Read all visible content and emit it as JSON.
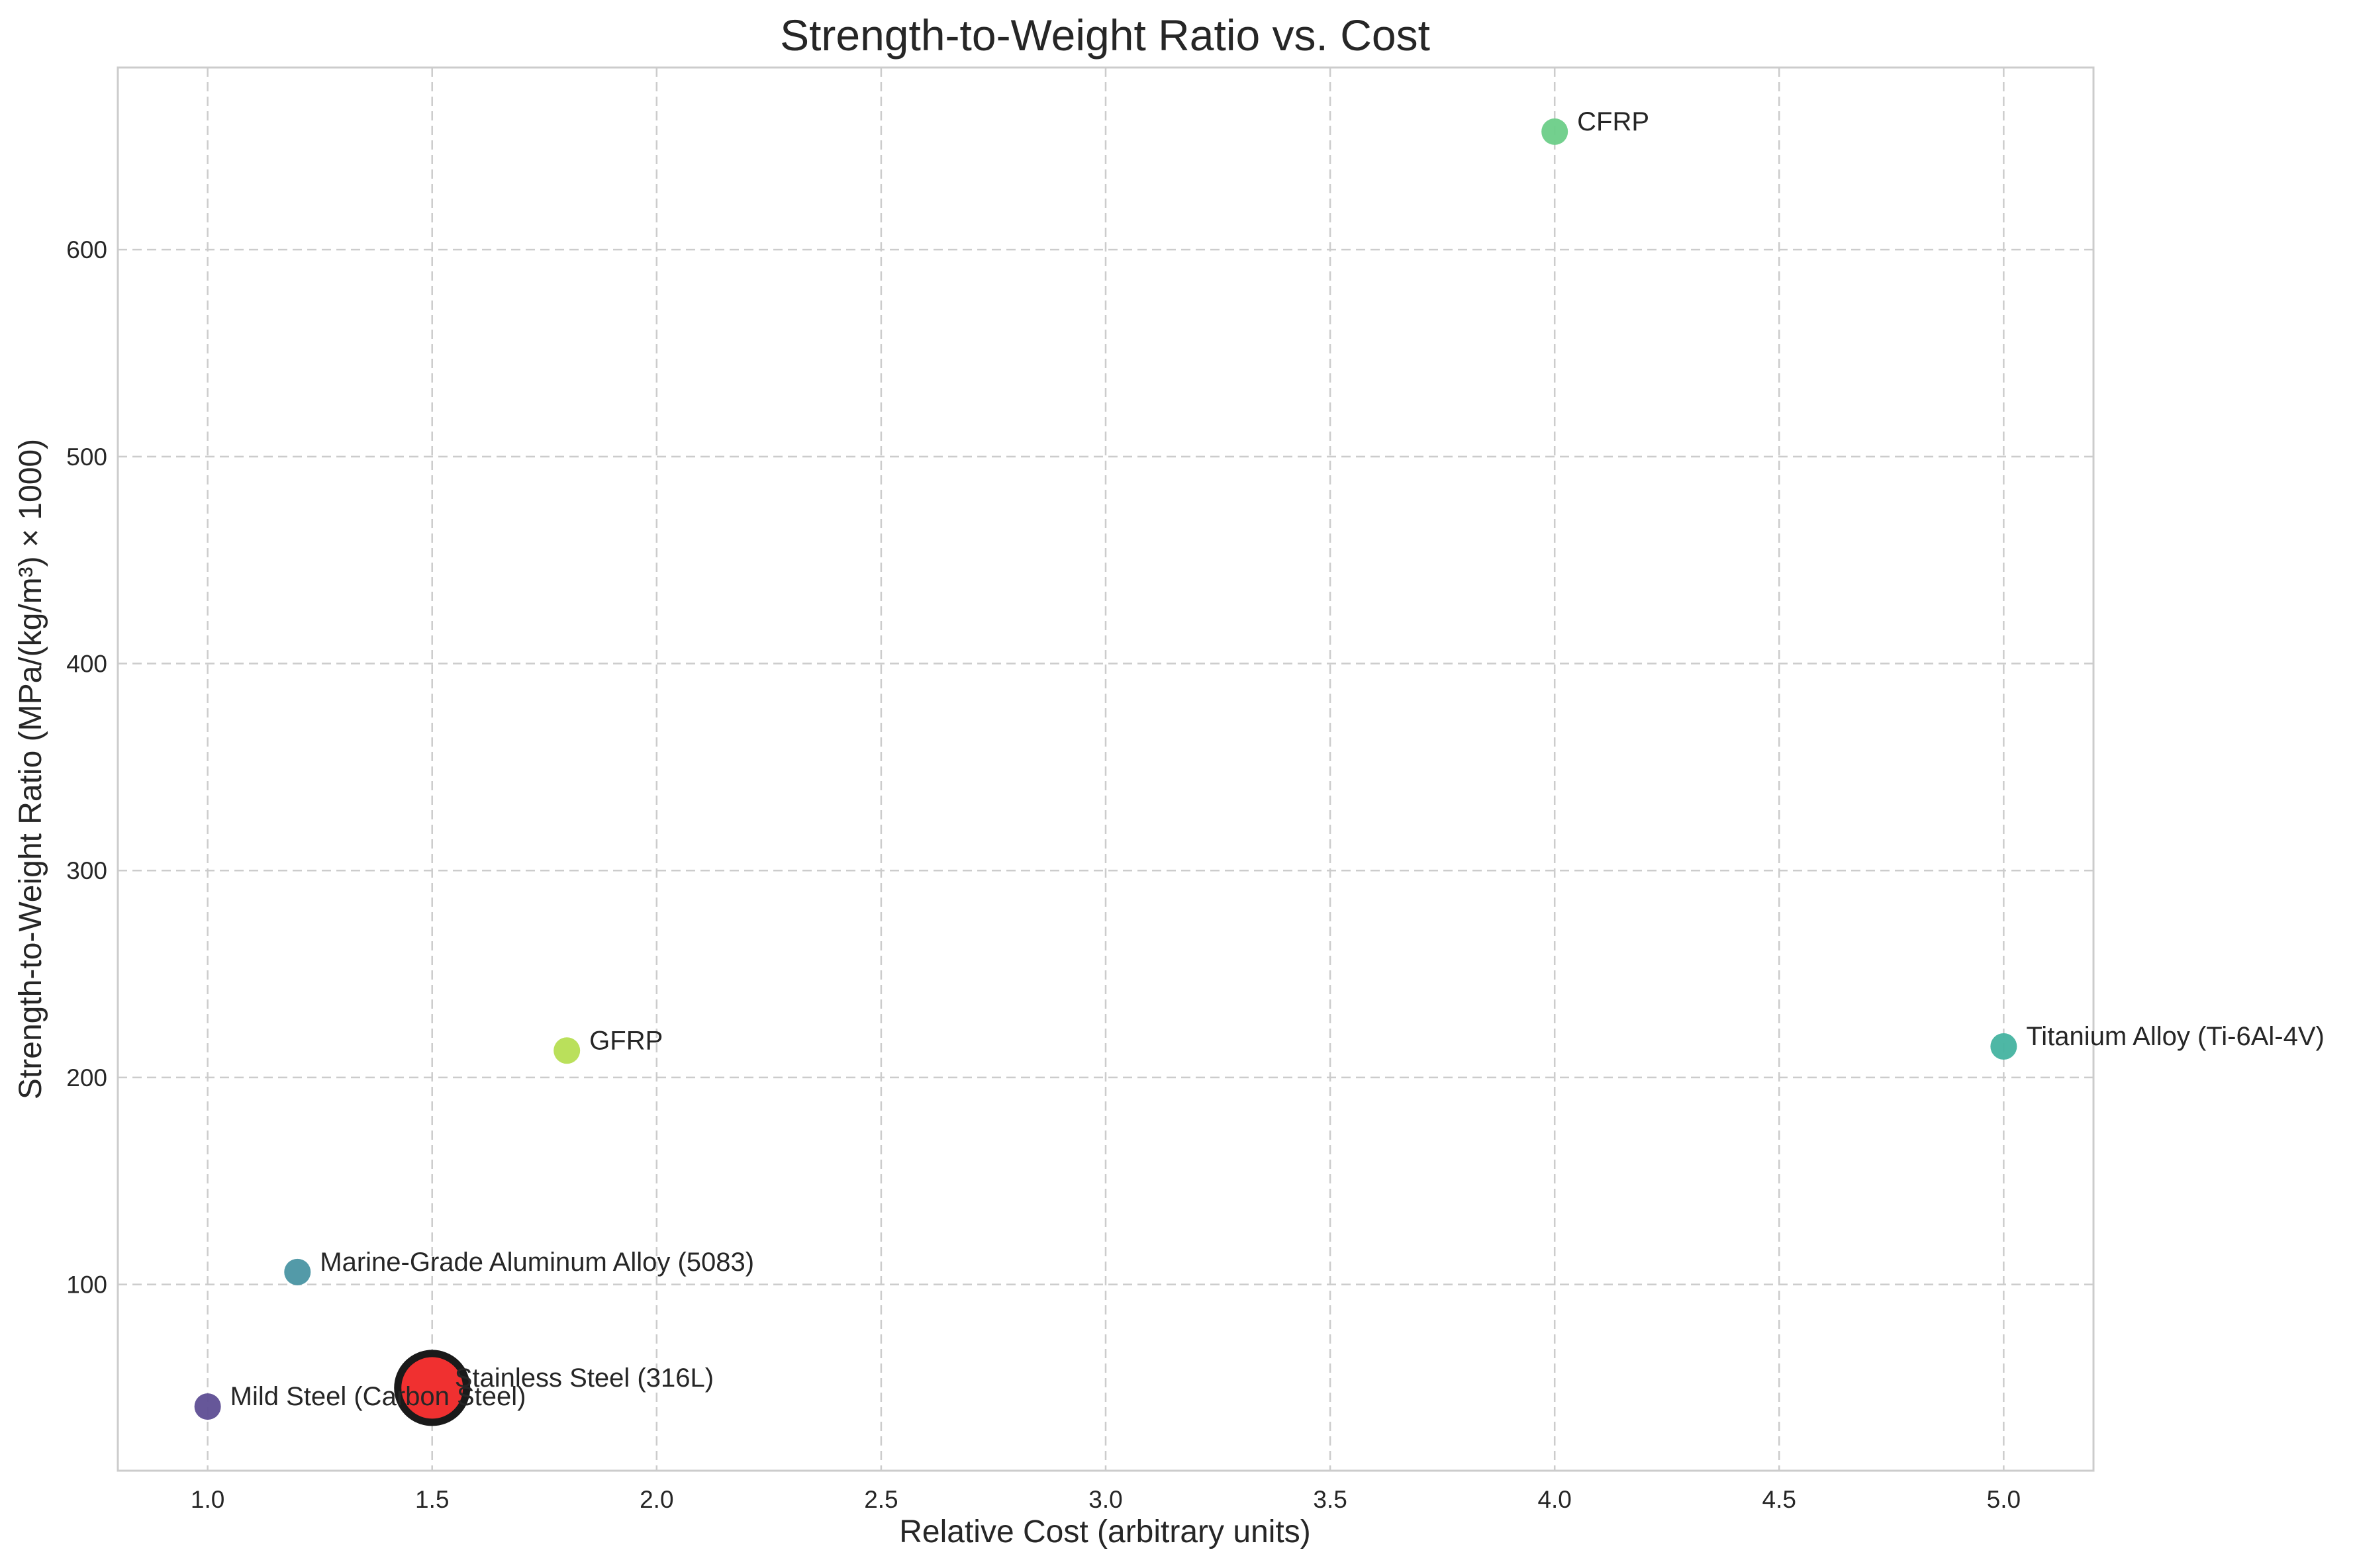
{
  "chart_data": {
    "type": "scatter",
    "title": "Strength-to-Weight Ratio vs. Cost",
    "xlabel": "Relative Cost (arbitrary units)",
    "ylabel": "Strength-to-Weight Ratio (MPa/(kg/m³) × 1000)",
    "xlim": [
      0.8,
      5.2
    ],
    "ylim": [
      10,
      688
    ],
    "xticks": [
      1.0,
      1.5,
      2.0,
      2.5,
      3.0,
      3.5,
      4.0,
      4.5,
      5.0
    ],
    "xtick_labels": [
      "1.0",
      "1.5",
      "2.0",
      "2.5",
      "3.0",
      "3.5",
      "4.0",
      "4.5",
      "5.0"
    ],
    "yticks": [
      100,
      200,
      300,
      400,
      500,
      600
    ],
    "ytick_labels": [
      "100",
      "200",
      "300",
      "400",
      "500",
      "600"
    ],
    "grid": true,
    "grid_style": "dashed",
    "points": [
      {
        "label": "Mild Steel (Carbon Steel)",
        "x": 1.0,
        "y": 41,
        "color": "#5e4e94",
        "highlighted": false
      },
      {
        "label": "Marine-Grade Aluminum Alloy (5083)",
        "x": 1.2,
        "y": 106,
        "color": "#4a95a3",
        "highlighted": false
      },
      {
        "label": "Stainless Steel (316L)",
        "x": 1.5,
        "y": 50,
        "color": "#f03030",
        "highlighted": true
      },
      {
        "label": "GFRP",
        "x": 1.8,
        "y": 213,
        "color": "#b6de52",
        "highlighted": false
      },
      {
        "label": "CFRP",
        "x": 4.0,
        "y": 657,
        "color": "#6ccd88",
        "highlighted": false
      },
      {
        "label": "Titanium Alloy (Ti-6Al-4V)",
        "x": 5.0,
        "y": 215,
        "color": "#44b3a0",
        "highlighted": false
      }
    ]
  }
}
